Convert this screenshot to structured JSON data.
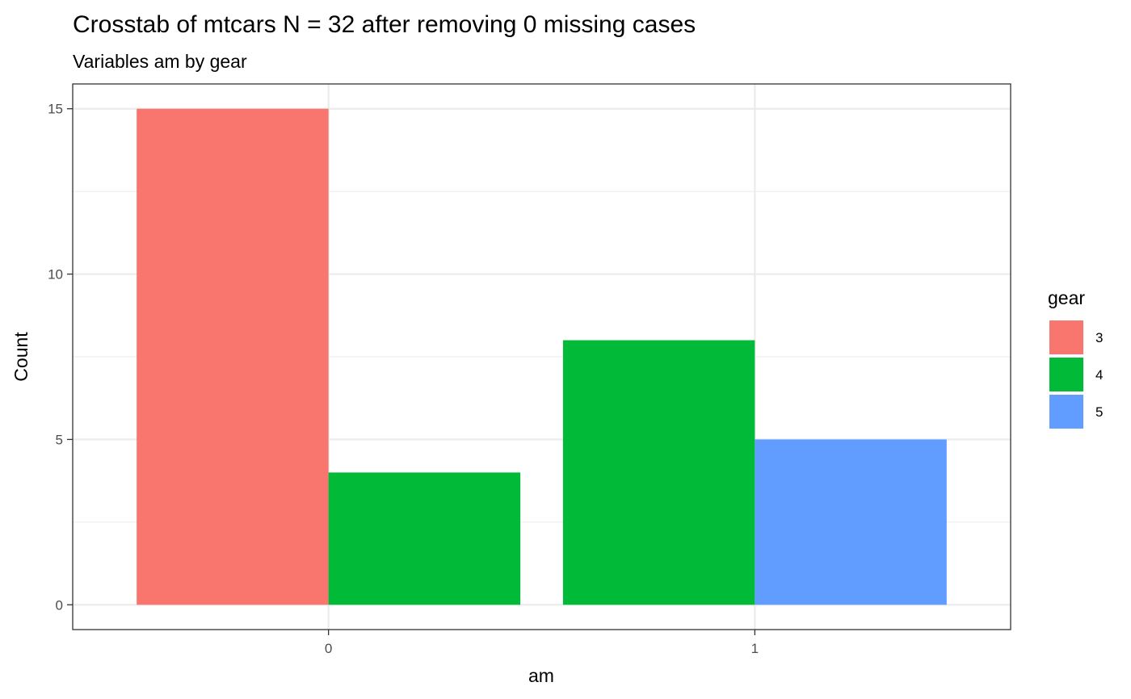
{
  "chart_data": {
    "type": "bar",
    "title": "Crosstab of mtcars N = 32 after removing 0 missing cases",
    "subtitle": "Variables am by gear",
    "xlabel": "am",
    "ylabel": "Count",
    "categories": [
      "0",
      "1"
    ],
    "series": [
      {
        "name": "3",
        "color": "#F8766D",
        "values": [
          15,
          0
        ]
      },
      {
        "name": "4",
        "color": "#00BA38",
        "values": [
          4,
          8
        ]
      },
      {
        "name": "5",
        "color": "#619CFF",
        "values": [
          0,
          5
        ]
      }
    ],
    "ylim": [
      -0.75,
      15.75
    ],
    "yticks": [
      0,
      5,
      10,
      15
    ],
    "grid": true,
    "legend": {
      "title": "gear",
      "placement": "right"
    },
    "position": "dodge"
  }
}
